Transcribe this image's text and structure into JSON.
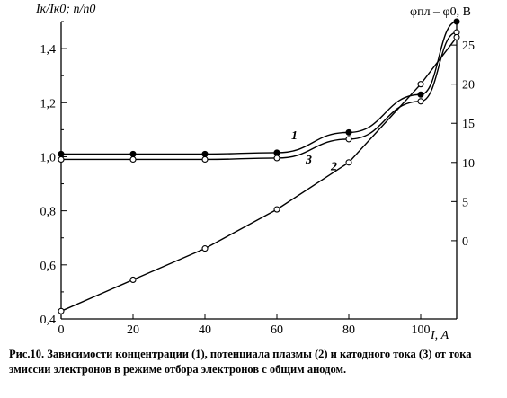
{
  "chart_data": {
    "type": "line",
    "ylabel_left": "Iк/Iк0;  n/n0",
    "ylabel_right": "φпл – φ0, В",
    "xlabel": "I, А",
    "xlim": [
      0,
      110
    ],
    "ylim": [
      0.4,
      1.5
    ],
    "ylim_right": [
      -10,
      28
    ],
    "x_ticks": [
      0,
      20,
      40,
      60,
      80,
      100
    ],
    "y_ticks": [
      "0,4",
      "0,6",
      "0,8",
      "1,0",
      "1,2",
      "1,4"
    ],
    "y_tick_values": [
      0.4,
      0.6,
      0.8,
      1.0,
      1.2,
      1.4
    ],
    "y_right_ticks": [
      0,
      5,
      10,
      15,
      20,
      25
    ],
    "grid": false,
    "series": [
      {
        "name": "1",
        "axis": "left",
        "marker": "filled",
        "x": [
          0,
          20,
          40,
          60,
          80,
          100,
          110
        ],
        "y": [
          1.01,
          1.01,
          1.01,
          1.015,
          1.09,
          1.23,
          1.5
        ]
      },
      {
        "name": "3",
        "axis": "left",
        "marker": "open",
        "x": [
          0,
          20,
          40,
          60,
          80,
          100,
          110
        ],
        "y": [
          0.99,
          0.99,
          0.99,
          0.995,
          1.065,
          1.205,
          1.46
        ]
      },
      {
        "name": "2",
        "axis": "right",
        "marker": "open",
        "x": [
          0,
          20,
          40,
          60,
          80,
          100,
          110
        ],
        "y": [
          -9,
          -5,
          -1,
          4,
          10,
          20,
          26
        ]
      }
    ],
    "caption": {
      "prefix": "Рис.10",
      "text": ". Зависимости концентрации  (1), потенциала плазмы (2) и катодного  тока (3) от тока эмиссии электронов в режиме отбора электронов  с общим анодом."
    }
  }
}
